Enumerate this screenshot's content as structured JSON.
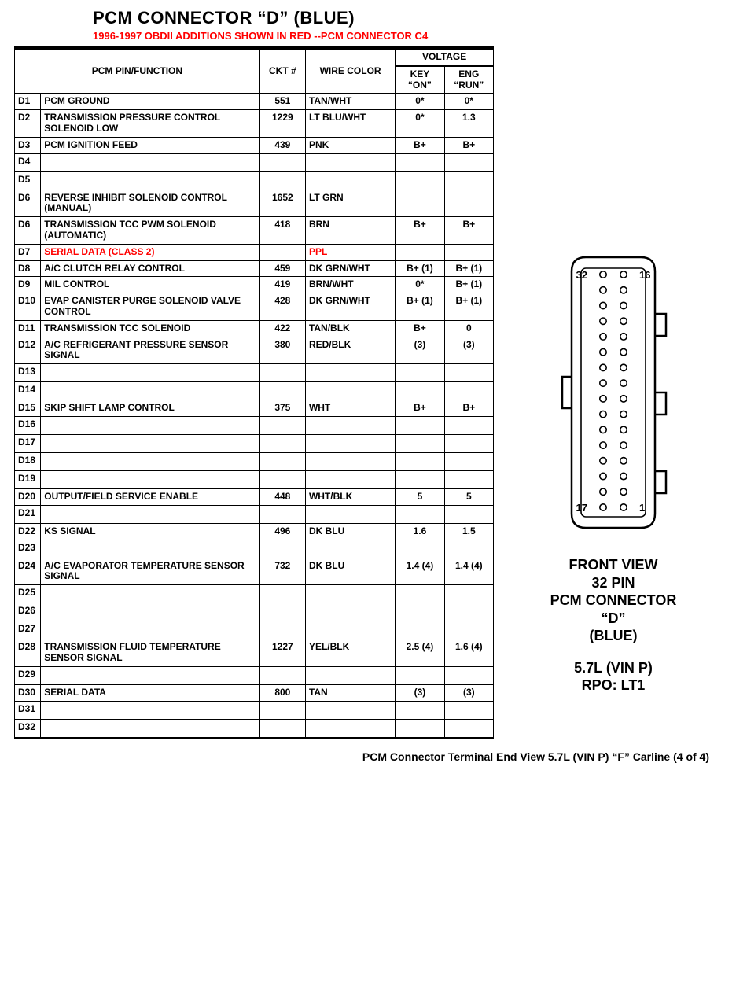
{
  "colors": {
    "text": "#000000",
    "highlight": "#ff0000",
    "background": "#ffffff",
    "border": "#000000"
  },
  "header": {
    "title": "PCM CONNECTOR “D” (BLUE)",
    "subtitle": "1996-1997 OBDII ADDITIONS SHOWN IN RED --PCM CONNECTOR C4"
  },
  "table": {
    "columns": {
      "pin_function": "PCM PIN/FUNCTION",
      "ckt": "CKT #",
      "wire": "WIRE COLOR",
      "voltage": "VOLTAGE",
      "key_on": "KEY “ON”",
      "eng_run": "ENG “RUN”"
    },
    "rows": [
      {
        "pin": "D1",
        "func": "PCM GROUND",
        "ckt": "551",
        "wire": "TAN/WHT",
        "kon": "0*",
        "run": "0*",
        "red": false
      },
      {
        "pin": "D2",
        "func": "TRANSMISSION PRESSURE CONTROL SOLENOID LOW",
        "ckt": "1229",
        "wire": "LT BLU/WHT",
        "kon": "0*",
        "run": "1.3",
        "red": false
      },
      {
        "pin": "D3",
        "func": "PCM IGNITION FEED",
        "ckt": "439",
        "wire": "PNK",
        "kon": "B+",
        "run": "B+",
        "red": false
      },
      {
        "pin": "D4",
        "func": "",
        "ckt": "",
        "wire": "",
        "kon": "",
        "run": "",
        "red": false
      },
      {
        "pin": "D5",
        "func": "",
        "ckt": "",
        "wire": "",
        "kon": "",
        "run": "",
        "red": false
      },
      {
        "pin": "D6",
        "func": "REVERSE INHIBIT SOLENOID CONTROL (MANUAL)",
        "ckt": "1652",
        "wire": "LT GRN",
        "kon": "",
        "run": "",
        "red": false
      },
      {
        "pin": "D6",
        "func": "TRANSMISSION TCC PWM SOLENOID (AUTOMATIC)",
        "ckt": "418",
        "wire": "BRN",
        "kon": "B+",
        "run": "B+",
        "red": false
      },
      {
        "pin": "D7",
        "func": "SERIAL DATA (CLASS 2)",
        "ckt": "",
        "wire": "PPL",
        "kon": "",
        "run": "",
        "red": true
      },
      {
        "pin": "D8",
        "func": "A/C CLUTCH RELAY CONTROL",
        "ckt": "459",
        "wire": "DK GRN/WHT",
        "kon": "B+ (1)",
        "run": "B+ (1)",
        "red": false
      },
      {
        "pin": "D9",
        "func": "MIL CONTROL",
        "ckt": "419",
        "wire": "BRN/WHT",
        "kon": "0*",
        "run": "B+ (1)",
        "red": false
      },
      {
        "pin": "D10",
        "func": "EVAP CANISTER PURGE SOLENOID VALVE CONTROL",
        "ckt": "428",
        "wire": "DK GRN/WHT",
        "kon": "B+ (1)",
        "run": "B+ (1)",
        "red": false
      },
      {
        "pin": "D11",
        "func": "TRANSMISSION TCC SOLENOID",
        "ckt": "422",
        "wire": "TAN/BLK",
        "kon": "B+",
        "run": "0",
        "red": false
      },
      {
        "pin": "D12",
        "func": "A/C REFRIGERANT PRESSURE SENSOR SIGNAL",
        "ckt": "380",
        "wire": "RED/BLK",
        "kon": "(3)",
        "run": "(3)",
        "red": false
      },
      {
        "pin": "D13",
        "func": "",
        "ckt": "",
        "wire": "",
        "kon": "",
        "run": "",
        "red": false
      },
      {
        "pin": "D14",
        "func": "",
        "ckt": "",
        "wire": "",
        "kon": "",
        "run": "",
        "red": false
      },
      {
        "pin": "D15",
        "func": "SKIP SHIFT LAMP CONTROL",
        "ckt": "375",
        "wire": "WHT",
        "kon": "B+",
        "run": "B+",
        "red": false
      },
      {
        "pin": "D16",
        "func": "",
        "ckt": "",
        "wire": "",
        "kon": "",
        "run": "",
        "red": false
      },
      {
        "pin": "D17",
        "func": "",
        "ckt": "",
        "wire": "",
        "kon": "",
        "run": "",
        "red": false
      },
      {
        "pin": "D18",
        "func": "",
        "ckt": "",
        "wire": "",
        "kon": "",
        "run": "",
        "red": false
      },
      {
        "pin": "D19",
        "func": "",
        "ckt": "",
        "wire": "",
        "kon": "",
        "run": "",
        "red": false
      },
      {
        "pin": "D20",
        "func": "OUTPUT/FIELD SERVICE ENABLE",
        "ckt": "448",
        "wire": "WHT/BLK",
        "kon": "5",
        "run": "5",
        "red": false
      },
      {
        "pin": "D21",
        "func": "",
        "ckt": "",
        "wire": "",
        "kon": "",
        "run": "",
        "red": false
      },
      {
        "pin": "D22",
        "func": "KS SIGNAL",
        "ckt": "496",
        "wire": "DK BLU",
        "kon": "1.6",
        "run": "1.5",
        "red": false
      },
      {
        "pin": "D23",
        "func": "",
        "ckt": "",
        "wire": "",
        "kon": "",
        "run": "",
        "red": false
      },
      {
        "pin": "D24",
        "func": "A/C EVAPORATOR TEMPERATURE SENSOR SIGNAL",
        "ckt": "732",
        "wire": "DK BLU",
        "kon": "1.4 (4)",
        "run": "1.4 (4)",
        "red": false
      },
      {
        "pin": "D25",
        "func": "",
        "ckt": "",
        "wire": "",
        "kon": "",
        "run": "",
        "red": false
      },
      {
        "pin": "D26",
        "func": "",
        "ckt": "",
        "wire": "",
        "kon": "",
        "run": "",
        "red": false
      },
      {
        "pin": "D27",
        "func": "",
        "ckt": "",
        "wire": "",
        "kon": "",
        "run": "",
        "red": false
      },
      {
        "pin": "D28",
        "func": "TRANSMISSION FLUID TEMPERATURE SENSOR SIGNAL",
        "ckt": "1227",
        "wire": "YEL/BLK",
        "kon": "2.5 (4)",
        "run": "1.6 (4)",
        "red": false
      },
      {
        "pin": "D29",
        "func": "",
        "ckt": "",
        "wire": "",
        "kon": "",
        "run": "",
        "red": false
      },
      {
        "pin": "D30",
        "func": "SERIAL DATA",
        "ckt": "800",
        "wire": "TAN",
        "kon": "(3)",
        "run": "(3)",
        "red": false
      },
      {
        "pin": "D31",
        "func": "",
        "ckt": "",
        "wire": "",
        "kon": "",
        "run": "",
        "red": false
      },
      {
        "pin": "D32",
        "func": "",
        "ckt": "",
        "wire": "",
        "kon": "",
        "run": "",
        "red": false
      }
    ]
  },
  "connector": {
    "labels": {
      "tl": "32",
      "tr": "16",
      "bl": "17",
      "br": "1"
    },
    "caption_lines": [
      "FRONT VIEW",
      "32 PIN",
      "PCM CONNECTOR",
      "“D”",
      "(BLUE)"
    ],
    "engine_lines": [
      "5.7L  (VIN P)",
      "RPO:  LT1"
    ],
    "pin_rows": 16,
    "outline_stroke": "#000000",
    "outline_width": 2.5
  },
  "footer": "PCM Connector Terminal End View  5.7L  (VIN P)  “F”  Carline  (4 of 4)"
}
